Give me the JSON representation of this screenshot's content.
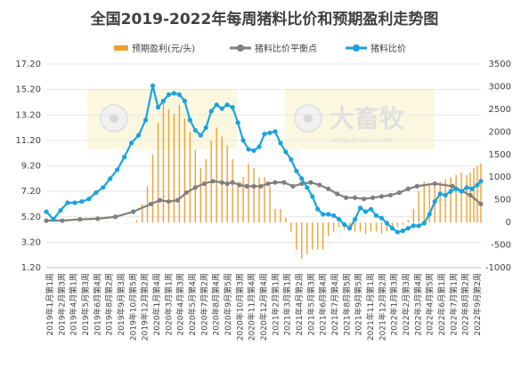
{
  "chart_data": {
    "type": "bar+line",
    "title": "全国2019-2022年每周猪料比价和预期盈利走势图",
    "legend": {
      "placement": "top",
      "entries": [
        "预期盈利(元/头)",
        "猪料比价平衡点",
        "猪料比价"
      ]
    },
    "left_axis": {
      "min": 1.2,
      "max": 17.2,
      "ticks": [
        "17.20",
        "15.20",
        "13.20",
        "11.20",
        "9.20",
        "7.20",
        "5.20",
        "3.20",
        "1.20"
      ]
    },
    "right_axis": {
      "min": -1000,
      "max": 3500,
      "ticks": [
        "3500",
        "3000",
        "2500",
        "2000",
        "1500",
        "1000",
        "500",
        "0",
        "-500",
        "-1000"
      ]
    },
    "x_tick_labels": [
      "2019年1月第1周",
      "2019年2月第3周",
      "2019年4月第1周",
      "2019年5月第3周",
      "2019年6月第4周",
      "2019年8月第2周",
      "2019年9月第3周",
      "2019年10月第5周",
      "2019年12月第2周",
      "2020年1月第4周",
      "2020年3月第1周",
      "2020年4月第3周",
      "2020年5月第4周",
      "2020年7月第2周",
      "2020年8月第4周",
      "2020年9月第5周",
      "2020年10月第3周",
      "2020年11月第4周",
      "2020年12月第4周",
      "2021年2月第1周",
      "2021年3月第1周",
      "2021年4月第2周",
      "2021年5月第3周",
      "2021年6月第4周",
      "2021年7月第4周",
      "2021年8月第5周",
      "2021年9月第5周",
      "2021年11月第1周",
      "2021年12月第2周",
      "2022年1月第3周",
      "2022年2月第3周",
      "2022年3月第4周",
      "2022年4月第5周",
      "2022年6月第1周",
      "2022年7月第1周",
      "2022年8月第2周",
      "2022年9月第2周"
    ],
    "series": [
      {
        "name": "预期盈利(元/头)",
        "type": "bar",
        "axis": "right",
        "color": "#F0A030",
        "x": [
          1,
          6,
          11,
          16,
          21,
          26,
          31,
          36,
          41,
          46,
          49,
          52,
          55,
          58,
          61,
          64,
          67,
          70,
          73,
          76,
          79,
          82,
          85,
          88,
          91,
          94,
          97,
          100,
          103,
          106,
          109,
          112,
          115,
          118,
          121,
          124,
          127,
          130,
          133,
          136,
          139,
          142,
          145,
          148,
          151,
          154,
          157,
          160,
          163,
          166,
          169,
          172,
          175,
          178,
          181,
          184,
          187,
          190,
          193,
          196,
          199,
          202,
          205,
          208,
          211,
          214,
          217,
          220,
          223,
          226,
          229,
          232,
          235,
          238,
          240,
          242,
          244,
          246
        ],
        "values": [
          0,
          0,
          0,
          0,
          0,
          0,
          0,
          0,
          0,
          0,
          0,
          50,
          400,
          800,
          1500,
          2200,
          2700,
          2500,
          2400,
          2600,
          2300,
          2000,
          1600,
          1200,
          1400,
          1800,
          2100,
          1900,
          1700,
          1400,
          900,
          1000,
          1300,
          1200,
          1000,
          1000,
          800,
          300,
          300,
          100,
          -200,
          -600,
          -800,
          -700,
          -600,
          -600,
          -600,
          -300,
          -200,
          -100,
          -150,
          -150,
          -200,
          -200,
          -250,
          -200,
          -200,
          -250,
          -200,
          -150,
          -100,
          -50,
          50,
          300,
          700,
          900,
          850,
          800,
          900,
          950,
          1000,
          1050,
          1100,
          1050,
          1100,
          1200,
          1250,
          1300
        ]
      },
      {
        "name": "猪料比价平衡点",
        "type": "line",
        "axis": "left",
        "color": "#7F7F7F",
        "x": [
          1,
          10,
          20,
          30,
          40,
          50,
          60,
          65,
          70,
          75,
          80,
          85,
          90,
          95,
          100,
          103,
          106,
          110,
          114,
          118,
          122,
          126,
          130,
          135,
          140,
          145,
          150,
          155,
          160,
          165,
          170,
          175,
          180,
          185,
          190,
          195,
          200,
          205,
          210,
          220,
          230,
          240,
          246
        ],
        "values": [
          4.9,
          4.9,
          5.0,
          5.05,
          5.2,
          5.6,
          6.2,
          6.5,
          6.4,
          6.5,
          7.1,
          7.5,
          7.8,
          8.0,
          7.9,
          7.8,
          7.9,
          7.7,
          7.6,
          7.6,
          7.6,
          7.8,
          7.9,
          7.9,
          7.6,
          7.8,
          7.9,
          7.7,
          7.4,
          7.0,
          6.7,
          6.7,
          6.6,
          6.7,
          6.8,
          6.9,
          7.1,
          7.4,
          7.6,
          7.8,
          7.6,
          6.9,
          6.2
        ]
      },
      {
        "name": "猪料比价",
        "type": "line",
        "axis": "left",
        "color": "#1AA3E0",
        "x": [
          1,
          5,
          9,
          13,
          17,
          21,
          25,
          29,
          33,
          37,
          41,
          45,
          49,
          53,
          57,
          61,
          64,
          67,
          70,
          73,
          76,
          79,
          82,
          85,
          88,
          91,
          94,
          97,
          100,
          103,
          106,
          109,
          112,
          115,
          118,
          121,
          124,
          127,
          130,
          133,
          136,
          139,
          142,
          145,
          148,
          151,
          154,
          157,
          160,
          163,
          166,
          169,
          172,
          175,
          178,
          181,
          184,
          187,
          190,
          193,
          196,
          199,
          202,
          205,
          208,
          211,
          214,
          217,
          220,
          223,
          226,
          229,
          232,
          235,
          238,
          241,
          244,
          246
        ],
        "values": [
          5.6,
          5.0,
          5.7,
          6.3,
          6.3,
          6.4,
          6.6,
          7.1,
          7.5,
          8.2,
          8.9,
          9.9,
          11.0,
          11.6,
          12.8,
          15.5,
          13.8,
          14.3,
          14.8,
          14.9,
          14.8,
          14.3,
          12.8,
          12.0,
          11.6,
          12.2,
          13.5,
          14.0,
          13.7,
          14.0,
          13.8,
          12.6,
          11.2,
          10.5,
          10.4,
          10.7,
          11.7,
          11.8,
          11.9,
          11.0,
          10.3,
          9.7,
          8.8,
          8.2,
          7.5,
          6.8,
          5.8,
          5.4,
          5.4,
          5.3,
          5.0,
          4.6,
          4.3,
          5.0,
          5.9,
          5.6,
          5.8,
          5.3,
          5.1,
          4.7,
          4.3,
          4.0,
          4.1,
          4.3,
          4.5,
          4.5,
          4.7,
          5.4,
          6.4,
          7.0,
          6.9,
          7.2,
          7.4,
          7.2,
          7.5,
          7.4,
          7.7,
          8.0
        ]
      }
    ]
  }
}
